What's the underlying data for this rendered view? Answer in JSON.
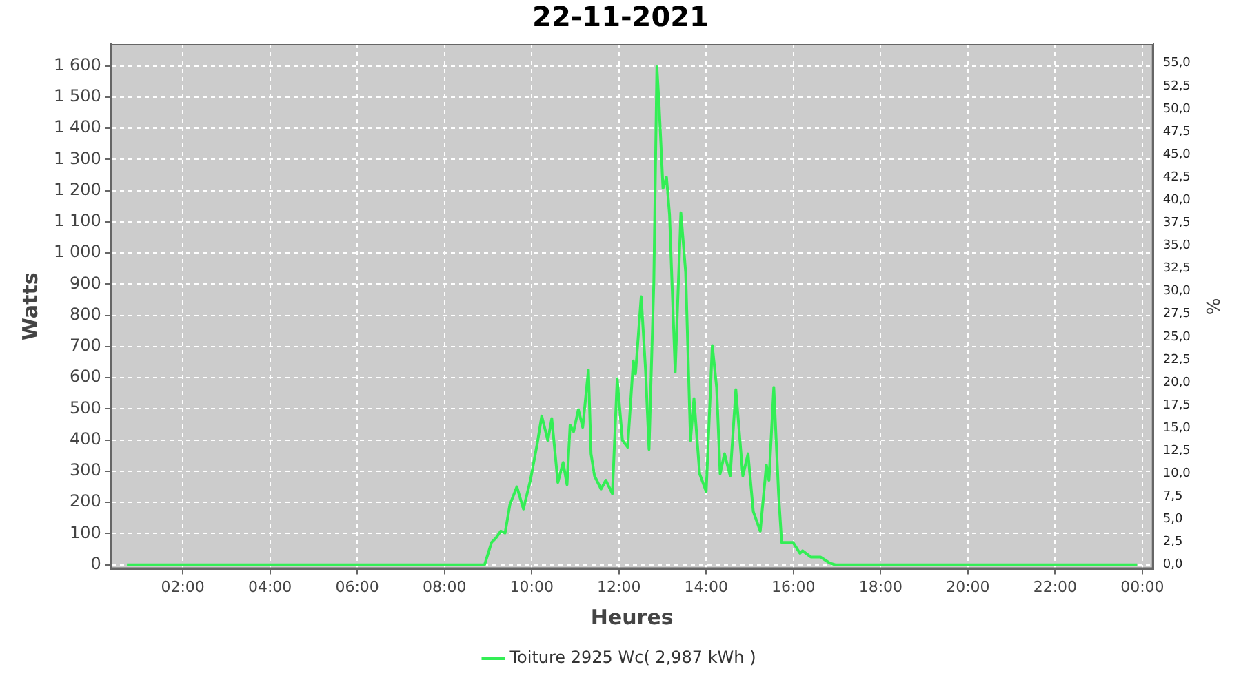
{
  "chart_data": {
    "type": "line",
    "title": "22-11-2021",
    "xlabel": "Heures",
    "ylabel": "Watts",
    "y2label": "%",
    "xlim": [
      0.35,
      24.25
    ],
    "xticks": [
      {
        "value": 2,
        "label": "02:00"
      },
      {
        "value": 4,
        "label": "04:00"
      },
      {
        "value": 6,
        "label": "06:00"
      },
      {
        "value": 8,
        "label": "08:00"
      },
      {
        "value": 10,
        "label": "10:00"
      },
      {
        "value": 12,
        "label": "12:00"
      },
      {
        "value": 14,
        "label": "14:00"
      },
      {
        "value": 16,
        "label": "16:00"
      },
      {
        "value": 18,
        "label": "18:00"
      },
      {
        "value": 20,
        "label": "20:00"
      },
      {
        "value": 22,
        "label": "22:00"
      },
      {
        "value": 24,
        "label": "00:00"
      }
    ],
    "ylim": [
      -13,
      1670
    ],
    "yticks": [
      0,
      100,
      200,
      300,
      400,
      500,
      600,
      700,
      800,
      900,
      {
        "value": 1000,
        "label": "1 000"
      },
      {
        "value": 1100,
        "label": "1 100"
      },
      {
        "value": 1200,
        "label": "1 200"
      },
      {
        "value": 1300,
        "label": "1 300"
      },
      {
        "value": 1400,
        "label": "1 400"
      },
      {
        "value": 1500,
        "label": "1 500"
      },
      {
        "value": 1600,
        "label": "1 600"
      }
    ],
    "y2lim": [
      -0.44,
      57.1
    ],
    "y2ticks": [
      {
        "value": 0,
        "label": "0,0"
      },
      {
        "value": 2.5,
        "label": "2,5"
      },
      {
        "value": 5,
        "label": "5,0"
      },
      {
        "value": 7.5,
        "label": "7,5"
      },
      {
        "value": 10,
        "label": "10,0"
      },
      {
        "value": 12.5,
        "label": "12,5"
      },
      {
        "value": 15,
        "label": "15,0"
      },
      {
        "value": 17.5,
        "label": "17,5"
      },
      {
        "value": 20,
        "label": "20,0"
      },
      {
        "value": 22.5,
        "label": "22,5"
      },
      {
        "value": 25,
        "label": "25,0"
      },
      {
        "value": 27.5,
        "label": "27,5"
      },
      {
        "value": 30,
        "label": "30,0"
      },
      {
        "value": 32.5,
        "label": "32,5"
      },
      {
        "value": 35,
        "label": "35,0"
      },
      {
        "value": 37.5,
        "label": "37,5"
      },
      {
        "value": 40,
        "label": "40,0"
      },
      {
        "value": 42.5,
        "label": "42,5"
      },
      {
        "value": 45,
        "label": "45,0"
      },
      {
        "value": 47.5,
        "label": "47,5"
      },
      {
        "value": 50,
        "label": "50,0"
      },
      {
        "value": 52.5,
        "label": "52,5"
      },
      {
        "value": 55,
        "label": "55,0"
      }
    ],
    "grid": true,
    "legend": "bottom",
    "series": [
      {
        "name": "Toiture 2925 Wc( 2,987 kWh )",
        "color": "#33ee55",
        "x": [
          0.72,
          8.92,
          9.08,
          9.18,
          9.29,
          9.39,
          9.5,
          9.66,
          9.81,
          9.97,
          10.13,
          10.23,
          10.37,
          10.46,
          10.6,
          10.72,
          10.81,
          10.88,
          10.96,
          11.07,
          11.17,
          11.3,
          11.36,
          11.44,
          11.59,
          11.7,
          11.85,
          11.96,
          12.08,
          12.2,
          12.33,
          12.38,
          12.51,
          12.61,
          12.69,
          12.8,
          12.87,
          12.92,
          13.01,
          13.09,
          13.16,
          13.29,
          13.42,
          13.53,
          13.64,
          13.72,
          13.85,
          14.0,
          14.14,
          14.24,
          14.32,
          14.42,
          14.55,
          14.68,
          14.84,
          14.96,
          15.08,
          15.24,
          15.38,
          15.44,
          15.55,
          15.66,
          15.73,
          15.99,
          16.15,
          16.21,
          16.4,
          16.62,
          16.84,
          16.96,
          23.88
        ],
        "values": [
          0,
          0,
          72,
          86,
          108,
          102,
          193,
          250,
          179,
          271,
          391,
          477,
          399,
          469,
          264,
          328,
          257,
          448,
          427,
          498,
          441,
          625,
          356,
          285,
          243,
          271,
          228,
          597,
          399,
          377,
          654,
          613,
          860,
          625,
          370,
          909,
          1597,
          1477,
          1207,
          1243,
          1123,
          618,
          1129,
          937,
          399,
          533,
          292,
          235,
          703,
          569,
          292,
          356,
          285,
          562,
          285,
          356,
          171,
          108,
          320,
          271,
          569,
          228,
          72,
          72,
          37,
          45,
          25,
          25,
          5,
          0,
          0
        ]
      }
    ]
  }
}
